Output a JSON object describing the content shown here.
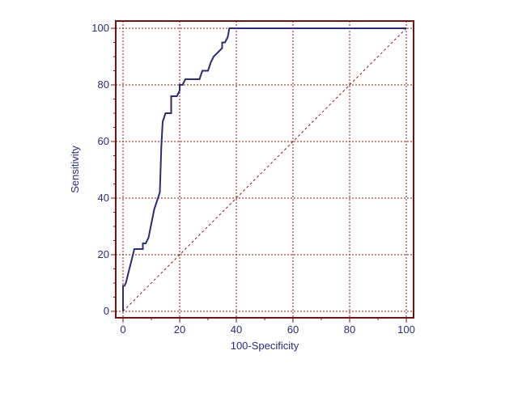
{
  "chart_data": {
    "type": "line",
    "title": "",
    "xlabel": "100-Specificity",
    "ylabel": "Sensitivity",
    "xlim": [
      0,
      100
    ],
    "ylim": [
      0,
      100
    ],
    "x_ticks": [
      "0",
      "20",
      "40",
      "60",
      "80",
      "100"
    ],
    "y_ticks": [
      "0",
      "20",
      "40",
      "60",
      "80",
      "100"
    ],
    "grid": true,
    "series": [
      {
        "x": [
          0,
          0,
          0.5,
          1,
          2,
          3,
          4,
          5,
          6,
          7,
          7,
          8,
          9,
          10,
          11,
          12,
          13,
          13.5,
          14,
          15,
          17,
          17,
          19,
          20,
          20,
          21,
          22,
          24,
          25,
          27,
          28,
          30,
          31,
          32,
          33,
          35,
          35,
          36,
          37,
          37.5,
          40,
          60,
          80,
          100
        ],
        "y": [
          0,
          9,
          9,
          10,
          14,
          18,
          22,
          22,
          22,
          22,
          24,
          24,
          26,
          31,
          36,
          39,
          42,
          58,
          67,
          70,
          70,
          76,
          76,
          78,
          80,
          80,
          82,
          82,
          82,
          82,
          85,
          85,
          88,
          90,
          91,
          93,
          95,
          95,
          97,
          100,
          100,
          100,
          100,
          100
        ]
      }
    ],
    "reference_line": {
      "x": [
        0,
        100
      ],
      "y": [
        0,
        100
      ]
    },
    "colors": {
      "curve": "#2b2b7a",
      "grid": "#8b1a1a",
      "frame": "#6b1515",
      "diagonal": "#8b1a1a",
      "text": "#2b2b7a"
    }
  }
}
